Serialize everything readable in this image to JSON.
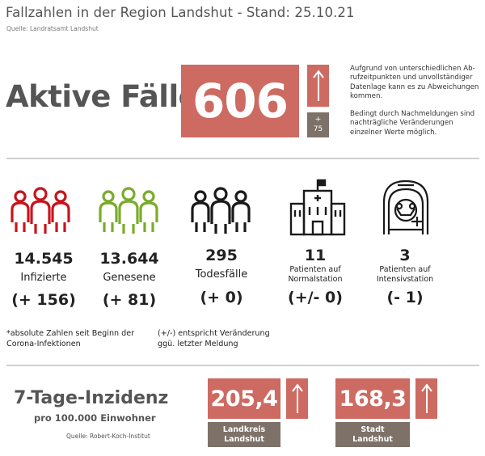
{
  "header": {
    "title": "Fallzahlen in der Region Landshut - Stand: 25.10.21",
    "source": "Quelle: Landratsamt Landshut"
  },
  "active": {
    "label": "Aktive Fälle",
    "value": "606",
    "delta_sign": "+",
    "delta_value": "75",
    "trend": "up-arrow-icon",
    "note_1": "Aufgrund von unterschiedlichen Ab-rufzeitpunkten und unvollständiger Datenlage kann es zu Abweichungen kommen.",
    "note_2": "Bedingt durch Nachmeldungen sind nachträgliche Veränderungen einzelner Werte möglich."
  },
  "stats": [
    {
      "value": "14.545",
      "label": "Infizierte",
      "delta": "(+ 156)",
      "icon": "people-group-icon",
      "color": "#c8141c"
    },
    {
      "value": "13.644",
      "label": "Genesene",
      "delta": "(+ 81)",
      "icon": "people-group-icon",
      "color": "#7aac2a"
    },
    {
      "value": "295",
      "label": "Todesfälle",
      "delta": "(+ 0)",
      "icon": "people-group-icon",
      "color": "#1a1a1a"
    },
    {
      "value": "11",
      "label_1": "Patienten auf",
      "label_2": "Normalstation",
      "delta": "(+/- 0)",
      "icon": "hospital-icon"
    },
    {
      "value": "3",
      "label_1": "Patienten auf",
      "label_2": "Intensivstation",
      "delta": "(- 1)",
      "icon": "intensive-care-patient-icon"
    }
  ],
  "footnotes": {
    "left_1": "*absolute Zahlen seit Beginn der",
    "left_2": "Corona-Infektionen",
    "right_1": "(+/-) entspricht Veränderung",
    "right_2": "ggü. letzter Meldung"
  },
  "incidence": {
    "title": "7-Tage-Inzidenz",
    "subtitle": "pro 100.000 Einwohner",
    "source": "Quelle: Robert-Koch-Institut",
    "regions": [
      {
        "value": "205,4",
        "name_1": "Landkreis",
        "name_2": "Landshut",
        "trend": "up-arrow-icon"
      },
      {
        "value": "168,3",
        "name_1": "Stadt",
        "name_2": "Landshut",
        "trend": "up-arrow-icon"
      }
    ]
  },
  "colors": {
    "accent_red": "#cd6a61",
    "taupe": "#7d7168",
    "heading_gray": "#555555"
  }
}
